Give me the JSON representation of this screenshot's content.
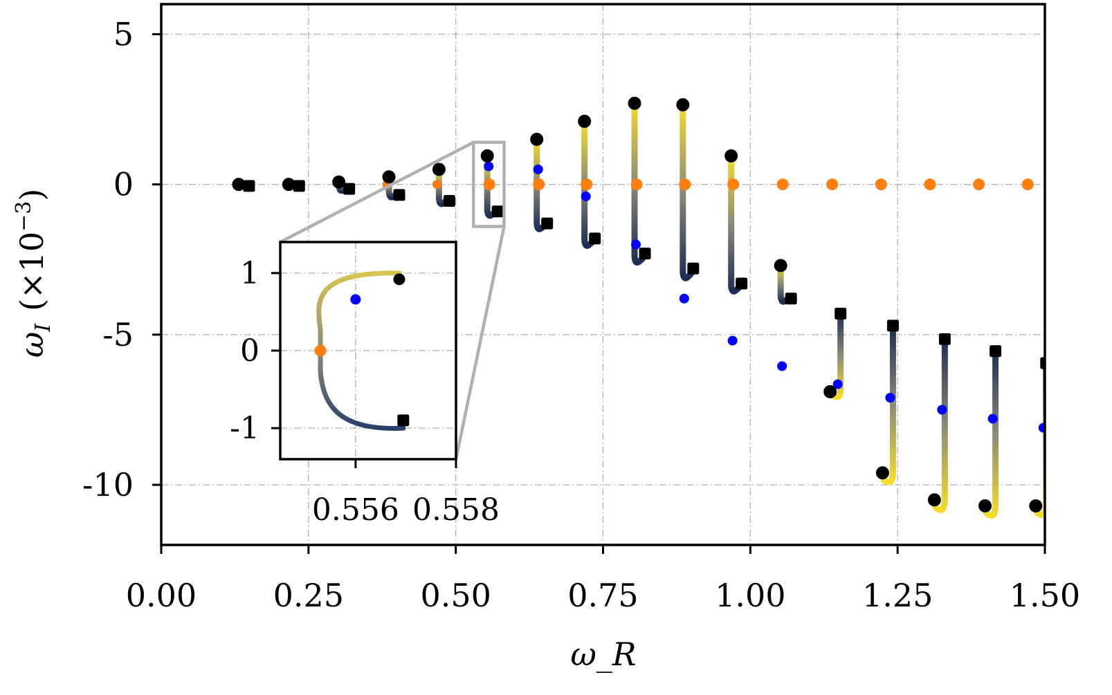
{
  "chart_data": [
    {
      "type": "scatter",
      "title": "",
      "xlabel": "ω_R",
      "ylabel_symbol": "ω",
      "ylabel_sub": "I",
      "ylabel_factor": "(×10",
      "ylabel_exp": "−3",
      "ylabel_close": ")",
      "xlim": [
        0.0,
        1.5
      ],
      "ylim": [
        -12.0,
        6.0
      ],
      "xticks": [
        0.0,
        0.25,
        0.5,
        0.75,
        1.0,
        1.25,
        1.5
      ],
      "xtick_labels": [
        "0.00",
        "0.25",
        "0.50",
        "0.75",
        "1.00",
        "1.25",
        "1.50"
      ],
      "yticks": [
        5,
        0,
        -5,
        -10
      ],
      "ytick_labels": [
        "5",
        "0",
        "-5",
        "-10"
      ],
      "grid": true,
      "colors": {
        "start": "#000000",
        "end": "#000000",
        "midpoint": "#0000ff",
        "zero_crossing": "#ff7f0e",
        "track_yellow": "#f5dc2a",
        "track_gray": "#8c8a78",
        "track_navy": "#1c2e55"
      },
      "series": [
        {
          "points": [
            {
              "x0": 0.135,
              "wR": 0.135,
              "circle": 0.0,
              "mid": -0.02,
              "square": -0.05,
              "w": 0.0,
              "bulge": 0.0
            },
            {
              "x0": 0.22,
              "wR": 0.22,
              "circle": 0.0,
              "mid": -0.02,
              "square": -0.05,
              "w": 0.0,
              "bulge": 0.0
            },
            {
              "x0": 0.305,
              "wR": 0.305,
              "circle": 0.08,
              "mid": -0.05,
              "square": -0.15,
              "w": 0.0,
              "bulge": 0.0
            },
            {
              "x0": 0.39,
              "wR": 0.39,
              "circle": 0.25,
              "mid": -0.1,
              "square": -0.35,
              "w": 0.0,
              "bulge": 0.0
            },
            {
              "x0": 0.475,
              "wR": 0.475,
              "circle": 0.5,
              "mid": -0.2,
              "square": -0.55,
              "w": 0.0,
              "bulge": 0.0
            },
            {
              "x0": 0.557,
              "wR": 0.557,
              "circle": 0.95,
              "mid": 0.6,
              "square": -0.9,
              "w": 0.0,
              "bulge": 0.0
            },
            {
              "x0": 0.641,
              "wR": 0.641,
              "circle": 1.5,
              "mid": 0.5,
              "square": -1.3,
              "w": 0.0,
              "bulge": 0.0
            },
            {
              "x0": 0.722,
              "wR": 0.722,
              "circle": 2.1,
              "mid": -0.4,
              "square": -1.8,
              "w": 0.0,
              "bulge": 0.0
            },
            {
              "x0": 0.807,
              "wR": 0.807,
              "circle": 2.7,
              "mid": -2.0,
              "square": -2.3,
              "w": 0.0,
              "bulge": 0.0
            },
            {
              "x0": 0.889,
              "wR": 0.889,
              "circle": 2.65,
              "mid": -3.8,
              "square": -2.8,
              "w": 0.0,
              "bulge": 0.0
            },
            {
              "x0": 0.971,
              "wR": 0.971,
              "circle": 0.95,
              "mid": -5.2,
              "square": -3.3,
              "w": 0.0,
              "bulge": 0.0
            },
            {
              "x0": 1.055,
              "wR": 1.055,
              "circle": -2.7,
              "mid": -6.05,
              "square": -3.8,
              "w": 0.0,
              "bulge": 0.0
            },
            {
              "x0": 1.139,
              "wR": 1.139,
              "circle": -6.9,
              "mid": -6.65,
              "square": -4.3,
              "w": 0.0,
              "bulge": 0.0
            },
            {
              "x0": 1.228,
              "wR": 1.228,
              "circle": -9.6,
              "mid": -7.1,
              "square": -4.7,
              "w": 0.0,
              "bulge": 0.0
            },
            {
              "x0": 1.316,
              "wR": 1.316,
              "circle": -10.5,
              "mid": -7.5,
              "square": -5.15,
              "w": 0.0,
              "bulge": 0.0
            },
            {
              "x0": 1.402,
              "wR": 1.402,
              "circle": -10.7,
              "mid": -7.8,
              "square": -5.55,
              "w": 0.0,
              "bulge": 0.0
            },
            {
              "x0": 1.488,
              "wR": 1.488,
              "circle": -10.7,
              "mid": -8.1,
              "square": -5.95,
              "w": 0.0,
              "bulge": 0.0
            }
          ],
          "zero_points_x": [
            0.557,
            0.641,
            0.722,
            0.807,
            0.889,
            0.971,
            1.055,
            1.139,
            1.222,
            1.305,
            1.388,
            1.471
          ],
          "zero_points_small_x": [
            0.39,
            0.475
          ]
        }
      ]
    },
    {
      "type": "line",
      "title": "",
      "xlim": [
        0.5545,
        0.558
      ],
      "ylim": [
        -1.4,
        1.4
      ],
      "xticks": [
        0.556,
        0.558
      ],
      "xtick_labels": [
        "0.556",
        "0.558"
      ],
      "yticks": [
        1,
        0,
        -1
      ],
      "ytick_labels": [
        "1",
        "0",
        "-1"
      ],
      "grid": true,
      "trajectory": {
        "center_x": 0.557,
        "center_y": 0.0,
        "radius_x": 0.0009,
        "radius_y": 0.98,
        "start": {
          "x": 0.55687,
          "y": 0.92
        },
        "mid": {
          "x": 0.556,
          "y": 0.66
        },
        "zero": {
          "x": 0.5553,
          "y": 0.0
        },
        "end": {
          "x": 0.55695,
          "y": -0.9
        }
      },
      "zoom_box": {
        "x0": 0.53,
        "x1": 0.582,
        "y0": -1.4,
        "y1": 1.4
      }
    }
  ]
}
